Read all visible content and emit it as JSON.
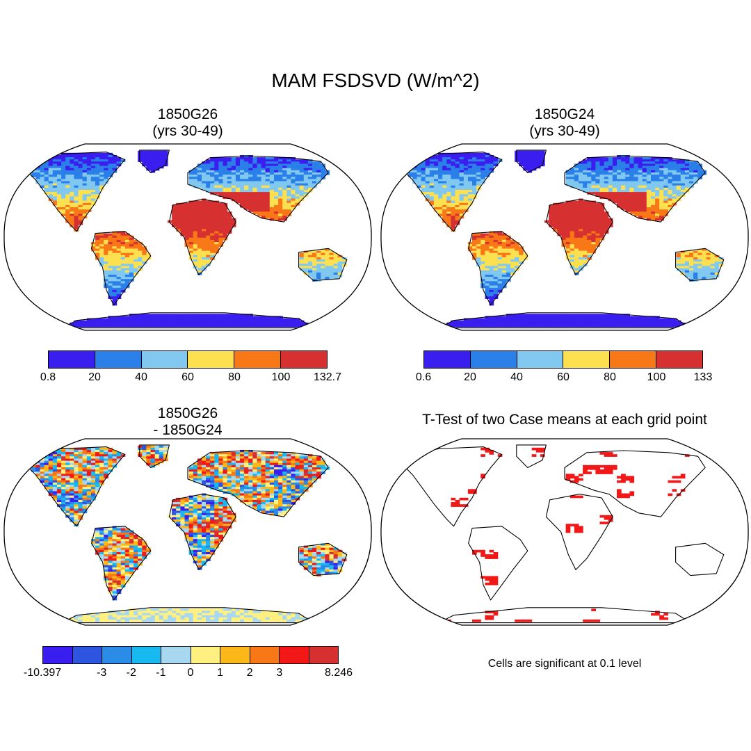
{
  "title": "MAM FSDSVD (W/m^2)",
  "panels": {
    "top_left": {
      "line1": "1850G26",
      "line2": "(yrs 30-49)"
    },
    "top_right": {
      "line1": "1850G24",
      "line2": "(yrs 30-49)"
    },
    "bottom_left": {
      "line1": "1850G26",
      "line2": "- 1850G24"
    },
    "bottom_right": {
      "line1": "T-Test of two Case means at each grid point"
    }
  },
  "colorbars": {
    "top_left": {
      "colors": [
        "#3a1ef0",
        "#2a7fe8",
        "#80c8f0",
        "#fde050",
        "#f87818",
        "#d63030"
      ],
      "labels": [
        "0.8",
        "20",
        "40",
        "60",
        "80",
        "100",
        "132.7"
      ]
    },
    "top_right": {
      "colors": [
        "#3a1ef0",
        "#2a7fe8",
        "#80c8f0",
        "#fde050",
        "#f87818",
        "#d63030"
      ],
      "labels": [
        "0.6",
        "20",
        "40",
        "60",
        "80",
        "100",
        "133"
      ]
    },
    "bottom_left": {
      "colors": [
        "#3a1ef0",
        "#2d55e0",
        "#2b8ce8",
        "#18b8f0",
        "#a8d8f0",
        "#fff080",
        "#fbb818",
        "#f87818",
        "#f21818",
        "#d63030"
      ],
      "labels": [
        "-10.397",
        "",
        "-3",
        "-2",
        "-1",
        "0",
        "1",
        "2",
        "3",
        "",
        "8.246"
      ]
    }
  },
  "note": "Cells are significant at 0.1 level"
}
